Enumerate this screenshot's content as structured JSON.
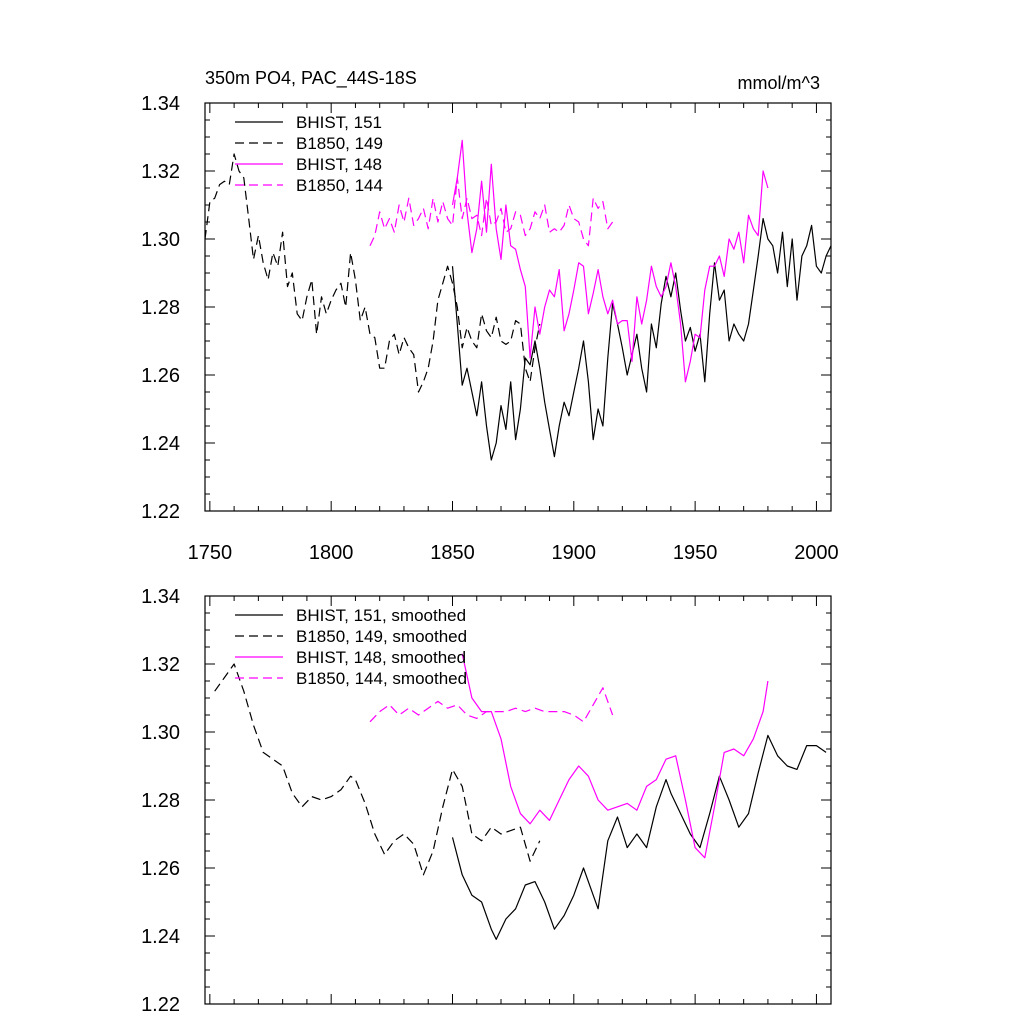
{
  "chart_data": [
    {
      "type": "line",
      "title": "350m PO4, PAC_44S-18S",
      "units": "mmol/m^3",
      "ylim": [
        1.22,
        1.34
      ],
      "xlim": [
        1748,
        2006
      ],
      "yticks": [
        "1.22",
        "1.24",
        "1.26",
        "1.28",
        "1.30",
        "1.32",
        "1.34"
      ],
      "xticks": [
        "1750",
        "1800",
        "1850",
        "1900",
        "1950",
        "2000"
      ],
      "legend": [
        "BHIST, 151",
        "B1850, 149",
        "BHIST, 148",
        "B1850, 144"
      ],
      "series": [
        {
          "name": "BHIST, 151",
          "color": "#000000",
          "dash": false,
          "x": [
            1850,
            1852,
            1854,
            1856,
            1858,
            1860,
            1862,
            1864,
            1866,
            1868,
            1870,
            1872,
            1874,
            1876,
            1878,
            1880,
            1882,
            1884,
            1886,
            1888,
            1890,
            1892,
            1894,
            1896,
            1898,
            1900,
            1902,
            1904,
            1906,
            1908,
            1910,
            1912,
            1914,
            1916,
            1918,
            1920,
            1922,
            1924,
            1926,
            1928,
            1930,
            1932,
            1934,
            1936,
            1938,
            1940,
            1942,
            1944,
            1946,
            1948,
            1950,
            1952,
            1954,
            1956,
            1958,
            1960,
            1962,
            1964,
            1966,
            1968,
            1970,
            1972,
            1974,
            1976,
            1978,
            1980,
            1982,
            1984,
            1986,
            1988,
            1990,
            1992,
            1994,
            1996,
            1998,
            2000,
            2002,
            2004,
            2006
          ],
          "y": [
            1.292,
            1.275,
            1.257,
            1.262,
            1.255,
            1.248,
            1.258,
            1.245,
            1.235,
            1.24,
            1.251,
            1.244,
            1.258,
            1.241,
            1.25,
            1.265,
            1.263,
            1.27,
            1.262,
            1.252,
            1.244,
            1.236,
            1.245,
            1.252,
            1.248,
            1.255,
            1.262,
            1.27,
            1.258,
            1.241,
            1.25,
            1.245,
            1.265,
            1.281,
            1.275,
            1.268,
            1.26,
            1.266,
            1.272,
            1.262,
            1.255,
            1.275,
            1.268,
            1.281,
            1.289,
            1.283,
            1.29,
            1.279,
            1.27,
            1.274,
            1.267,
            1.272,
            1.258,
            1.278,
            1.293,
            1.282,
            1.285,
            1.27,
            1.275,
            1.272,
            1.27,
            1.275,
            1.285,
            1.295,
            1.306,
            1.3,
            1.298,
            1.29,
            1.302,
            1.286,
            1.3,
            1.282,
            1.295,
            1.298,
            1.304,
            1.292,
            1.29,
            1.295,
            1.298
          ]
        },
        {
          "name": "B1850, 149",
          "color": "#000000",
          "dash": true,
          "x": [
            1748,
            1750,
            1752,
            1754,
            1756,
            1758,
            1760,
            1762,
            1764,
            1766,
            1768,
            1770,
            1772,
            1774,
            1776,
            1778,
            1780,
            1782,
            1784,
            1786,
            1788,
            1790,
            1792,
            1794,
            1796,
            1798,
            1800,
            1802,
            1804,
            1806,
            1808,
            1810,
            1812,
            1814,
            1816,
            1818,
            1820,
            1822,
            1824,
            1826,
            1828,
            1830,
            1832,
            1834,
            1836,
            1838,
            1840,
            1842,
            1844,
            1846,
            1848,
            1850,
            1852,
            1854,
            1856,
            1858,
            1860,
            1862,
            1864,
            1866,
            1868,
            1870,
            1872,
            1874,
            1876,
            1878,
            1880,
            1882,
            1884,
            1886
          ],
          "y": [
            1.3,
            1.311,
            1.312,
            1.316,
            1.317,
            1.316,
            1.325,
            1.32,
            1.318,
            1.306,
            1.294,
            1.301,
            1.293,
            1.288,
            1.296,
            1.292,
            1.302,
            1.286,
            1.29,
            1.278,
            1.276,
            1.283,
            1.288,
            1.272,
            1.283,
            1.278,
            1.282,
            1.285,
            1.287,
            1.28,
            1.296,
            1.288,
            1.276,
            1.28,
            1.272,
            1.271,
            1.262,
            1.262,
            1.27,
            1.272,
            1.266,
            1.271,
            1.268,
            1.266,
            1.255,
            1.258,
            1.262,
            1.27,
            1.282,
            1.287,
            1.292,
            1.287,
            1.28,
            1.268,
            1.274,
            1.27,
            1.268,
            1.278,
            1.273,
            1.271,
            1.277,
            1.27,
            1.269,
            1.27,
            1.276,
            1.275,
            1.262,
            1.258,
            1.268,
            1.275
          ]
        },
        {
          "name": "BHIST, 148",
          "color": "#ff00ff",
          "dash": false,
          "x": [
            1850,
            1852,
            1854,
            1856,
            1858,
            1860,
            1862,
            1864,
            1866,
            1868,
            1870,
            1872,
            1874,
            1876,
            1878,
            1880,
            1882,
            1884,
            1886,
            1888,
            1890,
            1892,
            1894,
            1896,
            1898,
            1900,
            1902,
            1904,
            1906,
            1908,
            1910,
            1912,
            1914,
            1916,
            1918,
            1920,
            1922,
            1924,
            1926,
            1928,
            1930,
            1932,
            1934,
            1936,
            1938,
            1940,
            1942,
            1944,
            1946,
            1948,
            1950,
            1952,
            1954,
            1956,
            1958,
            1960,
            1962,
            1964,
            1966,
            1968,
            1970,
            1972,
            1974,
            1976,
            1978,
            1980
          ],
          "y": [
            1.31,
            1.318,
            1.329,
            1.308,
            1.296,
            1.303,
            1.317,
            1.302,
            1.322,
            1.303,
            1.294,
            1.31,
            1.298,
            1.297,
            1.291,
            1.286,
            1.265,
            1.28,
            1.272,
            1.28,
            1.285,
            1.283,
            1.291,
            1.273,
            1.278,
            1.285,
            1.293,
            1.292,
            1.278,
            1.284,
            1.291,
            1.283,
            1.278,
            1.282,
            1.275,
            1.276,
            1.276,
            1.264,
            1.283,
            1.275,
            1.282,
            1.292,
            1.286,
            1.283,
            1.286,
            1.293,
            1.286,
            1.275,
            1.258,
            1.264,
            1.272,
            1.271,
            1.285,
            1.292,
            1.292,
            1.295,
            1.289,
            1.3,
            1.297,
            1.302,
            1.293,
            1.307,
            1.303,
            1.301,
            1.32,
            1.315
          ]
        },
        {
          "name": "B1850, 144",
          "color": "#ff00ff",
          "dash": true,
          "x": [
            1816,
            1818,
            1820,
            1822,
            1824,
            1826,
            1828,
            1830,
            1832,
            1834,
            1836,
            1838,
            1840,
            1842,
            1844,
            1846,
            1848,
            1850,
            1852,
            1854,
            1856,
            1858,
            1860,
            1862,
            1864,
            1866,
            1868,
            1870,
            1872,
            1874,
            1876,
            1878,
            1880,
            1882,
            1884,
            1886,
            1888,
            1890,
            1892,
            1894,
            1896,
            1898,
            1900,
            1902,
            1904,
            1906,
            1908,
            1910,
            1912,
            1914,
            1916
          ],
          "y": [
            1.298,
            1.301,
            1.308,
            1.303,
            1.306,
            1.302,
            1.31,
            1.305,
            1.312,
            1.304,
            1.306,
            1.309,
            1.303,
            1.312,
            1.305,
            1.311,
            1.306,
            1.304,
            1.318,
            1.306,
            1.312,
            1.306,
            1.307,
            1.301,
            1.312,
            1.304,
            1.305,
            1.309,
            1.302,
            1.303,
            1.308,
            1.307,
            1.301,
            1.303,
            1.308,
            1.306,
            1.31,
            1.302,
            1.303,
            1.302,
            1.304,
            1.31,
            1.306,
            1.305,
            1.3,
            1.298,
            1.312,
            1.309,
            1.311,
            1.303,
            1.305
          ]
        }
      ]
    },
    {
      "type": "line",
      "title": "",
      "ylim": [
        1.22,
        1.34
      ],
      "xlim": [
        1748,
        2006
      ],
      "yticks": [
        "1.22",
        "1.24",
        "1.26",
        "1.28",
        "1.30",
        "1.32",
        "1.34"
      ],
      "legend": [
        "BHIST, 151, smoothed",
        "B1850, 149, smoothed",
        "BHIST, 148, smoothed",
        "B1850, 144, smoothed"
      ],
      "series": [
        {
          "name": "BHIST, 151, smoothed",
          "color": "#000000",
          "dash": false,
          "x": [
            1850,
            1854,
            1858,
            1862,
            1866,
            1868,
            1872,
            1876,
            1880,
            1884,
            1888,
            1892,
            1896,
            1900,
            1904,
            1908,
            1910,
            1914,
            1918,
            1922,
            1926,
            1930,
            1934,
            1938,
            1940,
            1944,
            1948,
            1952,
            1956,
            1960,
            1964,
            1968,
            1972,
            1976,
            1980,
            1984,
            1988,
            1992,
            1996,
            2000,
            2004
          ],
          "y": [
            1.269,
            1.258,
            1.252,
            1.25,
            1.242,
            1.239,
            1.245,
            1.248,
            1.255,
            1.256,
            1.25,
            1.242,
            1.246,
            1.252,
            1.26,
            1.252,
            1.248,
            1.268,
            1.275,
            1.266,
            1.27,
            1.266,
            1.278,
            1.286,
            1.282,
            1.276,
            1.27,
            1.266,
            1.276,
            1.287,
            1.28,
            1.272,
            1.276,
            1.288,
            1.299,
            1.293,
            1.29,
            1.289,
            1.296,
            1.296,
            1.294
          ]
        },
        {
          "name": "B1850, 149, smoothed",
          "color": "#000000",
          "dash": true,
          "x": [
            1752,
            1756,
            1760,
            1764,
            1768,
            1772,
            1776,
            1780,
            1784,
            1788,
            1792,
            1796,
            1800,
            1804,
            1808,
            1810,
            1814,
            1818,
            1822,
            1826,
            1830,
            1834,
            1838,
            1842,
            1846,
            1850,
            1854,
            1858,
            1862,
            1866,
            1870,
            1874,
            1878,
            1882,
            1886
          ],
          "y": [
            1.312,
            1.316,
            1.32,
            1.312,
            1.302,
            1.294,
            1.292,
            1.29,
            1.282,
            1.278,
            1.281,
            1.28,
            1.281,
            1.283,
            1.287,
            1.286,
            1.279,
            1.27,
            1.264,
            1.268,
            1.27,
            1.267,
            1.258,
            1.265,
            1.278,
            1.289,
            1.284,
            1.27,
            1.268,
            1.272,
            1.27,
            1.271,
            1.272,
            1.262,
            1.268
          ]
        },
        {
          "name": "BHIST, 148, smoothed",
          "color": "#ff00ff",
          "dash": false,
          "x": [
            1854,
            1858,
            1862,
            1866,
            1870,
            1874,
            1878,
            1882,
            1886,
            1890,
            1894,
            1898,
            1902,
            1906,
            1910,
            1914,
            1918,
            1922,
            1926,
            1930,
            1934,
            1938,
            1942,
            1946,
            1950,
            1954,
            1958,
            1962,
            1966,
            1970,
            1974,
            1978,
            1980
          ],
          "y": [
            1.323,
            1.31,
            1.306,
            1.306,
            1.298,
            1.284,
            1.276,
            1.273,
            1.277,
            1.274,
            1.28,
            1.286,
            1.29,
            1.287,
            1.28,
            1.277,
            1.278,
            1.279,
            1.277,
            1.284,
            1.286,
            1.292,
            1.293,
            1.28,
            1.266,
            1.263,
            1.278,
            1.294,
            1.295,
            1.293,
            1.298,
            1.306,
            1.315
          ]
        },
        {
          "name": "B1850, 144, smoothed",
          "color": "#ff00ff",
          "dash": true,
          "x": [
            1816,
            1820,
            1824,
            1828,
            1832,
            1836,
            1840,
            1844,
            1848,
            1852,
            1856,
            1860,
            1864,
            1868,
            1872,
            1876,
            1880,
            1884,
            1888,
            1892,
            1896,
            1900,
            1904,
            1908,
            1912,
            1916
          ],
          "y": [
            1.303,
            1.306,
            1.308,
            1.305,
            1.307,
            1.305,
            1.307,
            1.309,
            1.307,
            1.308,
            1.305,
            1.304,
            1.306,
            1.306,
            1.306,
            1.307,
            1.306,
            1.307,
            1.306,
            1.306,
            1.306,
            1.305,
            1.303,
            1.308,
            1.313,
            1.305
          ]
        }
      ]
    }
  ]
}
